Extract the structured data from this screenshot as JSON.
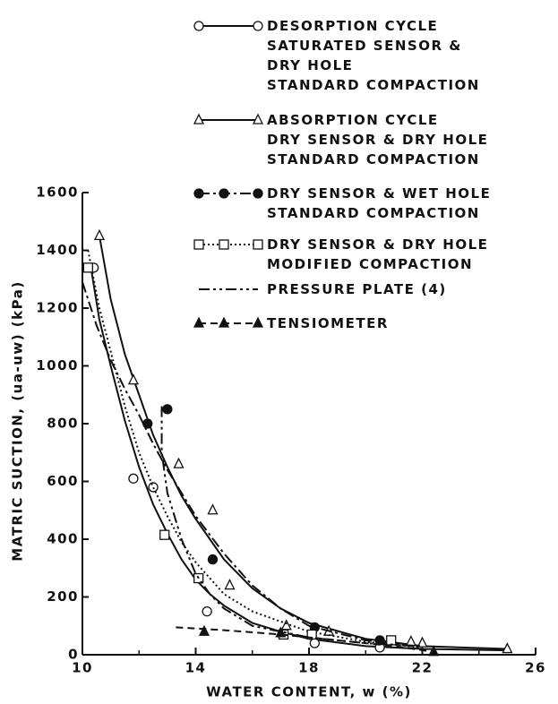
{
  "chart_data": {
    "type": "scatter",
    "xlabel": "WATER CONTENT, w (%)",
    "ylabel": "MATRIC SUCTION, (ua-uw) (kPa)",
    "xlim": [
      10,
      26
    ],
    "ylim": [
      0,
      1600
    ],
    "xticks": [
      10,
      14,
      18,
      22,
      26
    ],
    "xminor_ticks": [
      12,
      16,
      20,
      24
    ],
    "yticks": [
      0,
      200,
      400,
      600,
      800,
      1000,
      1200,
      1400,
      1600
    ],
    "color": "#111111",
    "series": [
      {
        "name": "DESORPTION CYCLE\nSATURATED SENSOR &\nDRY HOLE\nSTANDARD COMPACTION",
        "marker": "open-circle",
        "line_style": "solid",
        "x": [
          10.3,
          10.4,
          11.8,
          12.5,
          14.4,
          18.2,
          20.5
        ],
        "values": [
          1340,
          1340,
          610,
          580,
          150,
          40,
          25
        ],
        "curve_x": [
          10.3,
          10.6,
          11,
          11.5,
          12,
          12.5,
          13,
          13.5,
          14,
          14.5,
          15,
          16,
          17,
          18,
          20,
          22,
          25
        ],
        "curve_values": [
          1340,
          1160,
          1000,
          810,
          650,
          520,
          420,
          330,
          260,
          210,
          170,
          110,
          80,
          55,
          30,
          20,
          15
        ]
      },
      {
        "name": "ABSORPTION CYCLE\nDRY SENSOR & DRY HOLE\nSTANDARD COMPACTION",
        "marker": "open-triangle",
        "line_style": "solid",
        "x": [
          10.6,
          11.8,
          13.4,
          14.6,
          15.2,
          17.2,
          18.7,
          21.6,
          22,
          25
        ],
        "values": [
          1450,
          950,
          660,
          500,
          240,
          100,
          80,
          45,
          40,
          20
        ],
        "curve_x": [
          10.6,
          11,
          11.5,
          12,
          12.5,
          13,
          13.5,
          14,
          14.5,
          15,
          16,
          17,
          18,
          20,
          22,
          25
        ],
        "curve_values": [
          1450,
          1230,
          1040,
          900,
          760,
          650,
          550,
          470,
          400,
          330,
          230,
          160,
          110,
          55,
          30,
          20
        ]
      },
      {
        "name": "DRY SENSOR & WET HOLE\nSTANDARD COMPACTION",
        "marker": "filled-circle",
        "line_style": "dash-dot",
        "x": [
          12.3,
          13,
          14.6,
          18.2,
          20.5
        ],
        "values": [
          800,
          850,
          330,
          95,
          50
        ],
        "curve_x": [
          10,
          10.5,
          11,
          11.5,
          12,
          12.5,
          13,
          13.5,
          14,
          15,
          16,
          17,
          18,
          20,
          22
        ],
        "curve_values": [
          1290,
          1140,
          1020,
          920,
          830,
          730,
          640,
          560,
          480,
          350,
          240,
          160,
          100,
          50,
          25
        ]
      },
      {
        "name": "DRY SENSOR & DRY HOLE\nMODIFIED COMPACTION",
        "marker": "open-square",
        "line_style": "dotted",
        "x": [
          10.2,
          12.9,
          14.1,
          17.1,
          18.1,
          20.9
        ],
        "values": [
          1340,
          415,
          265,
          70,
          70,
          50
        ],
        "curve_x": [
          10.2,
          10.6,
          11,
          11.5,
          12,
          12.5,
          13,
          13.5,
          14,
          15,
          16,
          18,
          20,
          22
        ],
        "curve_values": [
          1400,
          1200,
          1050,
          860,
          700,
          580,
          480,
          390,
          320,
          210,
          150,
          80,
          45,
          25
        ]
      },
      {
        "name": "PRESSURE PLATE (4)",
        "marker": "none",
        "line_style": "dash-dot-dot",
        "curve_x": [
          12.8,
          12.8,
          13,
          13.5,
          14,
          14.5,
          15,
          16,
          18,
          20,
          22
        ],
        "curve_values": [
          860,
          700,
          560,
          400,
          280,
          210,
          160,
          100,
          60,
          40,
          30
        ]
      },
      {
        "name": "TENSIOMETER",
        "marker": "filled-triangle",
        "line_style": "dashed",
        "x": [
          14.3,
          17,
          22.4
        ],
        "values": [
          80,
          75,
          10
        ],
        "curve_x": [
          13.3,
          15,
          17,
          19,
          21,
          22.4
        ],
        "curve_values": [
          95,
          85,
          70,
          50,
          30,
          10
        ]
      }
    ]
  }
}
